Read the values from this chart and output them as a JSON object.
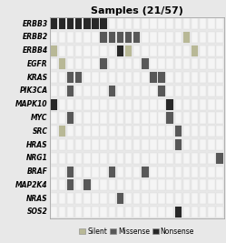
{
  "title": "Samples (21/57)",
  "genes": [
    "ERBB3",
    "ERBB2",
    "ERBB4",
    "EGFR",
    "KRAS",
    "PIK3CA",
    "MAPK10",
    "MYC",
    "SRC",
    "HRAS",
    "NRG1",
    "BRAF",
    "MAP2K4",
    "NRAS",
    "SOS2"
  ],
  "n_samples": 21,
  "colors": {
    "Silent": "#b8b896",
    "Missense": "#585858",
    "Nonsense": "#282828",
    "background": "#e8e8e8",
    "grid": "#f5f5f5",
    "grid_line": "#d0d0d0"
  },
  "mutations": {
    "ERBB3": [
      [
        0,
        "Nonsense"
      ],
      [
        1,
        "Nonsense"
      ],
      [
        2,
        "Nonsense"
      ],
      [
        3,
        "Nonsense"
      ],
      [
        4,
        "Nonsense"
      ],
      [
        5,
        "Nonsense"
      ],
      [
        6,
        "Nonsense"
      ]
    ],
    "ERBB2": [
      [
        6,
        "Missense"
      ],
      [
        7,
        "Missense"
      ],
      [
        8,
        "Missense"
      ],
      [
        9,
        "Missense"
      ],
      [
        10,
        "Missense"
      ],
      [
        16,
        "Silent"
      ]
    ],
    "ERBB4": [
      [
        0,
        "Silent"
      ],
      [
        8,
        "Nonsense"
      ],
      [
        9,
        "Silent"
      ],
      [
        17,
        "Silent"
      ]
    ],
    "EGFR": [
      [
        1,
        "Silent"
      ],
      [
        6,
        "Missense"
      ],
      [
        11,
        "Missense"
      ]
    ],
    "KRAS": [
      [
        2,
        "Missense"
      ],
      [
        3,
        "Missense"
      ],
      [
        12,
        "Missense"
      ],
      [
        13,
        "Missense"
      ]
    ],
    "PIK3CA": [
      [
        2,
        "Missense"
      ],
      [
        7,
        "Missense"
      ],
      [
        13,
        "Missense"
      ]
    ],
    "MAPK10": [
      [
        0,
        "Nonsense"
      ],
      [
        14,
        "Nonsense"
      ]
    ],
    "MYC": [
      [
        2,
        "Missense"
      ],
      [
        14,
        "Missense"
      ]
    ],
    "SRC": [
      [
        1,
        "Silent"
      ],
      [
        15,
        "Missense"
      ]
    ],
    "HRAS": [
      [
        15,
        "Missense"
      ]
    ],
    "NRG1": [
      [
        20,
        "Missense"
      ]
    ],
    "BRAF": [
      [
        2,
        "Missense"
      ],
      [
        7,
        "Missense"
      ],
      [
        11,
        "Missense"
      ]
    ],
    "MAP2K4": [
      [
        2,
        "Missense"
      ],
      [
        4,
        "Missense"
      ]
    ],
    "NRAS": [
      [
        8,
        "Missense"
      ]
    ],
    "SOS2": [
      [
        15,
        "Nonsense"
      ]
    ]
  },
  "legend_fontsize": 5.5,
  "title_fontsize": 8,
  "gene_fontsize": 5.5,
  "cell_size": 0.82
}
